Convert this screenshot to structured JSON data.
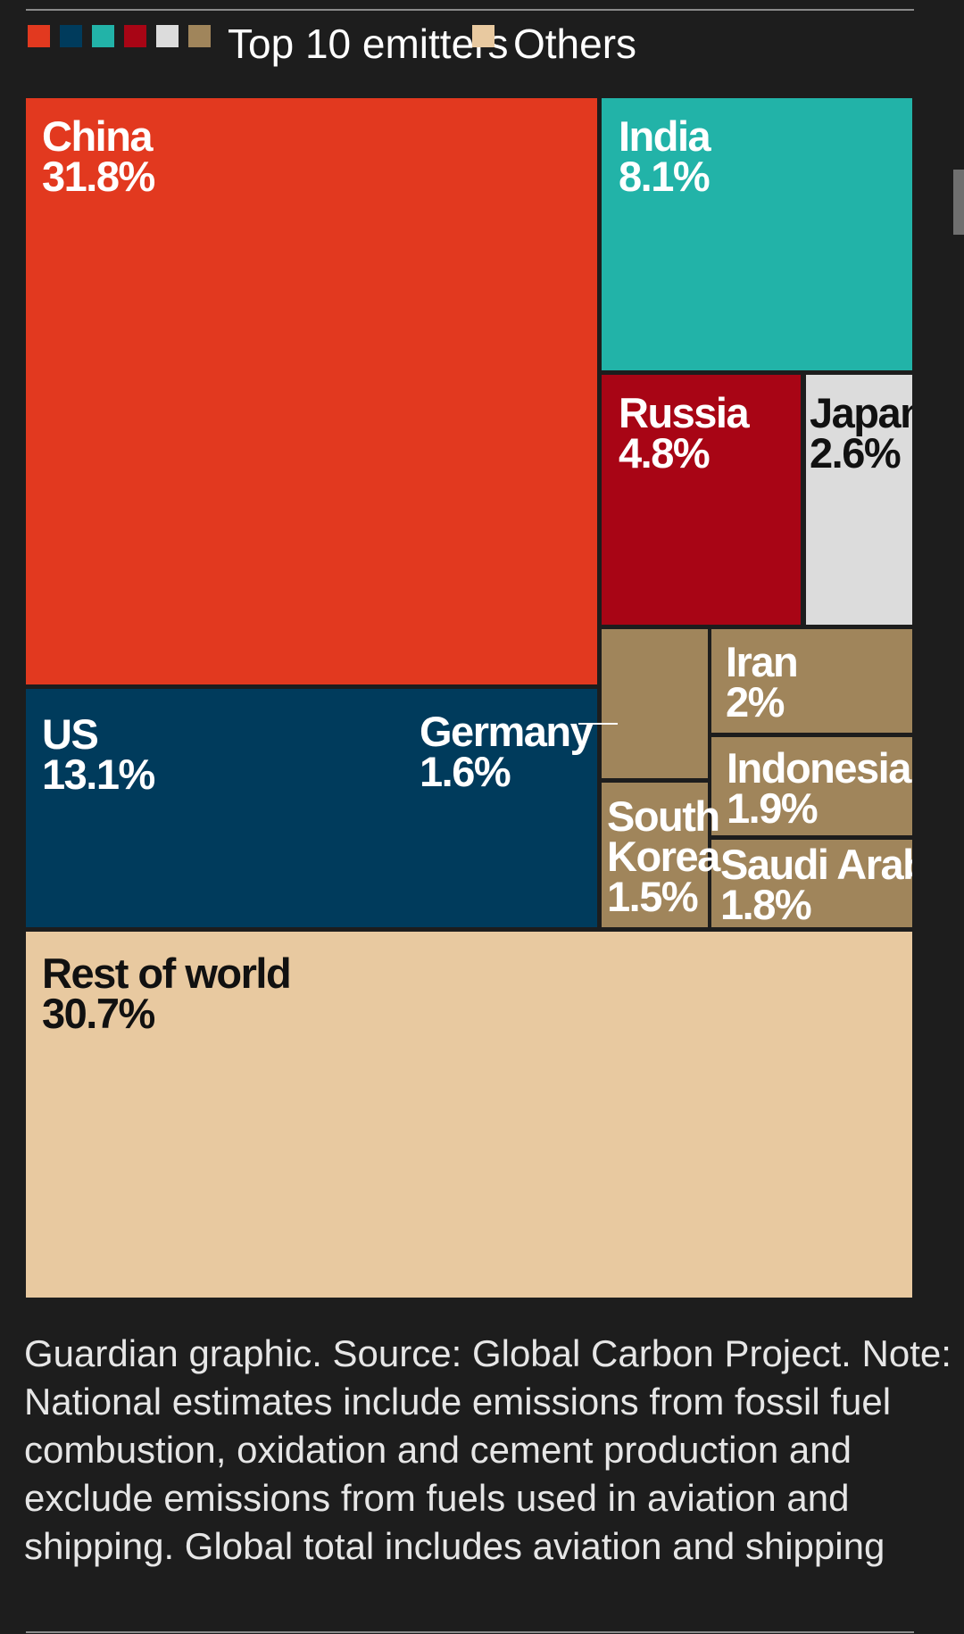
{
  "chart_data": {
    "type": "treemap",
    "legend": [
      {
        "label": "Top 10 emitters",
        "colors": [
          "#e2391f",
          "#003b5c",
          "#22b3a8",
          "#a80515",
          "#dcdcdc",
          "#a0855b"
        ]
      },
      {
        "label": "Others",
        "colors": [
          "#e8c9a0"
        ]
      }
    ],
    "categories": [
      "China",
      "India",
      "Russia",
      "Japan",
      "Germany",
      "Iran",
      "Indonesia",
      "South Korea",
      "Saudi Arabia",
      "US",
      "Rest of world"
    ],
    "values": [
      31.8,
      8.1,
      4.8,
      2.6,
      1.6,
      2,
      1.9,
      1.5,
      1.8,
      13.1,
      30.7
    ],
    "value_labels": [
      "31.8%",
      "8.1%",
      "4.8%",
      "2.6%",
      "1.6%",
      "2%",
      "1.9%",
      "1.5%",
      "1.8%",
      "13.1%",
      "30.7%"
    ],
    "colors": [
      "#e2391f",
      "#22b3a8",
      "#a80515",
      "#dcdcdc",
      "#a0855b",
      "#a0855b",
      "#a0855b",
      "#a0855b",
      "#a0855b",
      "#003b5c",
      "#e8c9a0"
    ],
    "note": "Guardian graphic. Source: Global Carbon Project. Note: National estimates include emissions from fossil fuel combustion, oxidation and cement production and exclude emissions from fuels used in aviation and shipping. Global total includes aviation and shipping"
  }
}
